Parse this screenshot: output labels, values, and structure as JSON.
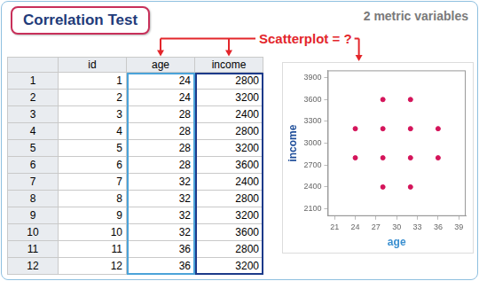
{
  "header": {
    "title": "Correlation Test",
    "subtitle": "2 metric variables"
  },
  "callout": "Scatterplot = ?",
  "table": {
    "columns": [
      "id",
      "age",
      "income"
    ],
    "row_labels": [
      1,
      2,
      3,
      4,
      5,
      6,
      7,
      8,
      9,
      10,
      11,
      12
    ],
    "rows": [
      [
        1,
        24,
        2800
      ],
      [
        2,
        24,
        3200
      ],
      [
        3,
        28,
        2400
      ],
      [
        4,
        28,
        2800
      ],
      [
        5,
        28,
        3200
      ],
      [
        6,
        28,
        3600
      ],
      [
        7,
        32,
        2400
      ],
      [
        8,
        32,
        2800
      ],
      [
        9,
        32,
        3200
      ],
      [
        10,
        32,
        3600
      ],
      [
        11,
        36,
        2800
      ],
      [
        12,
        36,
        3200
      ]
    ]
  },
  "chart_data": {
    "type": "scatter",
    "x": [
      24,
      24,
      28,
      28,
      28,
      28,
      32,
      32,
      32,
      32,
      36,
      36
    ],
    "values": [
      2800,
      3200,
      2400,
      2800,
      3200,
      3600,
      2400,
      2800,
      3200,
      3600,
      2800,
      3200
    ],
    "color": "#d4145a",
    "marker": "circle",
    "xlabel": "age",
    "ylabel": "income",
    "xlim": [
      20,
      40
    ],
    "xticks": [
      21,
      24,
      27,
      30,
      33,
      36,
      39
    ],
    "ylim": [
      2000,
      4000
    ],
    "yticks": [
      2100,
      2400,
      2700,
      3000,
      3300,
      3600,
      3900
    ],
    "grid": false
  }
}
